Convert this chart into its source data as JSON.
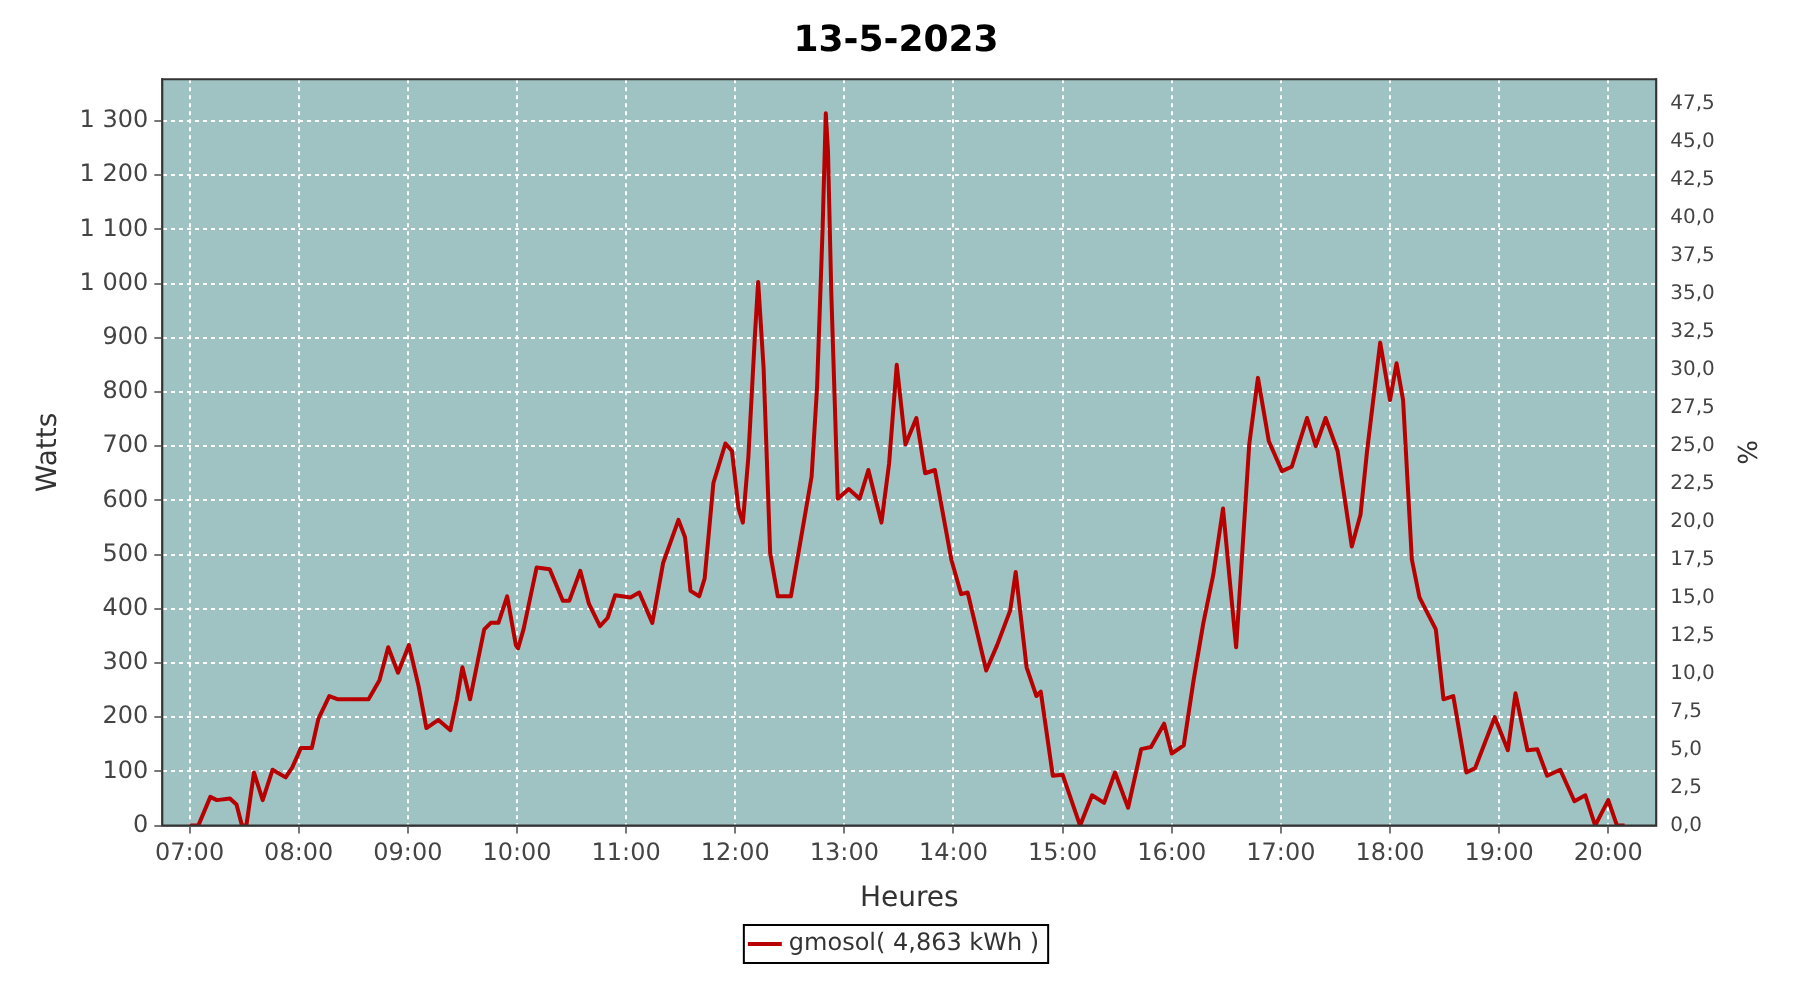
{
  "chart_data": {
    "type": "line",
    "title": "13-5-2023",
    "xlabel": "Heures",
    "ylabel": "Watts",
    "y2label": "%",
    "xlim": [
      6.75,
      20.44
    ],
    "xticks": [
      {
        "value": 7,
        "label": "07:00"
      },
      {
        "value": 8,
        "label": "08:00"
      },
      {
        "value": 9,
        "label": "09:00"
      },
      {
        "value": 10,
        "label": "10:00"
      },
      {
        "value": 11,
        "label": "11:00"
      },
      {
        "value": 12,
        "label": "12:00"
      },
      {
        "value": 13,
        "label": "13:00"
      },
      {
        "value": 14,
        "label": "14:00"
      },
      {
        "value": 15,
        "label": "15:00"
      },
      {
        "value": 16,
        "label": "16:00"
      },
      {
        "value": 17,
        "label": "17:00"
      },
      {
        "value": 18,
        "label": "18:00"
      },
      {
        "value": 19,
        "label": "19:00"
      },
      {
        "value": 20,
        "label": "20:00"
      }
    ],
    "ylim": [
      0,
      1377
    ],
    "yticks": [
      0,
      100,
      200,
      300,
      400,
      500,
      600,
      700,
      800,
      900,
      {
        "value": 1000,
        "label": "1 000"
      },
      {
        "value": 1100,
        "label": "1 100"
      },
      {
        "value": 1200,
        "label": "1 200"
      },
      {
        "value": 1300,
        "label": "1 300"
      }
    ],
    "y2lim": [
      0,
      49.1
    ],
    "y2ticks": [
      {
        "value": 0,
        "label": "0,0"
      },
      {
        "value": 2.5,
        "label": "2,5"
      },
      {
        "value": 5,
        "label": "5,0"
      },
      {
        "value": 7.5,
        "label": "7,5"
      },
      {
        "value": 10,
        "label": "10,0"
      },
      {
        "value": 12.5,
        "label": "12,5"
      },
      {
        "value": 15,
        "label": "15,0"
      },
      {
        "value": 17.5,
        "label": "17,5"
      },
      {
        "value": 20,
        "label": "20,0"
      },
      {
        "value": 22.5,
        "label": "22,5"
      },
      {
        "value": 25,
        "label": "25,0"
      },
      {
        "value": 27.5,
        "label": "27,5"
      },
      {
        "value": 30,
        "label": "30,0"
      },
      {
        "value": 32.5,
        "label": "32,5"
      },
      {
        "value": 35,
        "label": "35,0"
      },
      {
        "value": 37.5,
        "label": "37,5"
      },
      {
        "value": 40,
        "label": "40,0"
      },
      {
        "value": 42.5,
        "label": "42,5"
      },
      {
        "value": 45,
        "label": "45,0"
      },
      {
        "value": 47.5,
        "label": "47,5"
      }
    ],
    "grid": true,
    "legend": "bottom",
    "marker": "none",
    "line_style": "solid",
    "series": [
      {
        "name": "gmosol( 4,863 kWh )",
        "color": "#b80000",
        "x": [
          7.0,
          7.08,
          7.19,
          7.25,
          7.37,
          7.43,
          7.48,
          7.52,
          7.59,
          7.67,
          7.76,
          7.88,
          7.94,
          8.02,
          8.12,
          8.18,
          8.28,
          8.36,
          8.64,
          8.74,
          8.82,
          8.91,
          9.01,
          9.1,
          9.17,
          9.28,
          9.39,
          9.45,
          9.5,
          9.57,
          9.64,
          9.7,
          9.76,
          9.83,
          9.91,
          9.99,
          10.01,
          10.06,
          10.18,
          10.3,
          10.42,
          10.48,
          10.58,
          10.66,
          10.76,
          10.83,
          10.9,
          11.04,
          11.12,
          11.24,
          11.34,
          11.48,
          11.54,
          11.59,
          11.67,
          11.72,
          11.8,
          11.91,
          11.97,
          12.03,
          12.07,
          12.12,
          12.18,
          12.21,
          12.26,
          12.32,
          12.39,
          12.51,
          12.6,
          12.7,
          12.75,
          12.8,
          12.83,
          12.85,
          12.88,
          12.94,
          13.04,
          13.14,
          13.22,
          13.34,
          13.41,
          13.48,
          13.56,
          13.66,
          13.74,
          13.83,
          13.98,
          14.07,
          14.13,
          14.3,
          14.4,
          14.52,
          14.57,
          14.67,
          14.76,
          14.8,
          14.91,
          15.0,
          15.16,
          15.27,
          15.38,
          15.48,
          15.6,
          15.72,
          15.81,
          15.93,
          16.0,
          16.11,
          16.2,
          16.29,
          16.38,
          16.47,
          16.53,
          16.59,
          16.65,
          16.71,
          16.79,
          16.89,
          17.01,
          17.1,
          17.24,
          17.32,
          17.41,
          17.52,
          17.65,
          17.73,
          17.79,
          17.91,
          18.0,
          18.06,
          18.12,
          18.2,
          18.27,
          18.42,
          18.49,
          18.58,
          18.7,
          18.78,
          18.96,
          19.08,
          19.15,
          19.26,
          19.35,
          19.44,
          19.56,
          19.69,
          19.79,
          19.88,
          20.0,
          20.08,
          20.15
        ],
        "values": [
          0,
          0,
          53,
          47,
          50,
          39,
          0,
          0,
          98,
          47,
          103,
          89,
          107,
          143,
          143,
          197,
          239,
          233,
          233,
          268,
          329,
          282,
          333,
          256,
          180,
          195,
          176,
          233,
          292,
          233,
          303,
          362,
          374,
          374,
          423,
          333,
          327,
          362,
          476,
          473,
          415,
          415,
          470,
          409,
          368,
          383,
          425,
          421,
          430,
          374,
          485,
          564,
          532,
          433,
          423,
          456,
          632,
          705,
          691,
          585,
          559,
          679,
          903,
          1003,
          844,
          503,
          423,
          423,
          527,
          644,
          809,
          1097,
          1314,
          1244,
          985,
          603,
          621,
          603,
          656,
          559,
          668,
          850,
          703,
          752,
          650,
          656,
          491,
          427,
          430,
          286,
          333,
          397,
          468,
          292,
          239,
          247,
          92,
          94,
          0,
          56,
          42,
          98,
          33,
          141,
          145,
          188,
          133,
          148,
          268,
          374,
          462,
          585,
          456,
          329,
          515,
          703,
          826,
          709,
          654,
          662,
          752,
          700,
          752,
          691,
          515,
          574,
          691,
          891,
          785,
          853,
          785,
          491,
          421,
          362,
          233,
          239,
          98,
          106,
          200,
          139,
          244,
          139,
          141,
          92,
          103,
          45,
          56,
          0,
          47,
          0,
          0
        ]
      }
    ]
  }
}
